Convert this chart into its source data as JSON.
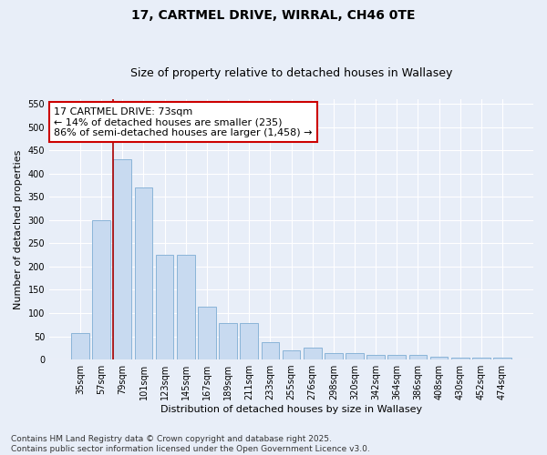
{
  "title": "17, CARTMEL DRIVE, WIRRAL, CH46 0TE",
  "subtitle": "Size of property relative to detached houses in Wallasey",
  "xlabel": "Distribution of detached houses by size in Wallasey",
  "ylabel": "Number of detached properties",
  "categories": [
    "35sqm",
    "57sqm",
    "79sqm",
    "101sqm",
    "123sqm",
    "145sqm",
    "167sqm",
    "189sqm",
    "211sqm",
    "233sqm",
    "255sqm",
    "276sqm",
    "298sqm",
    "320sqm",
    "342sqm",
    "364sqm",
    "386sqm",
    "408sqm",
    "430sqm",
    "452sqm",
    "474sqm"
  ],
  "values": [
    57,
    300,
    430,
    370,
    225,
    225,
    113,
    78,
    78,
    38,
    20,
    25,
    14,
    13,
    9,
    9,
    9,
    6,
    4,
    4,
    4
  ],
  "bar_color": "#c8daf0",
  "bar_edge_color": "#8ab4d8",
  "vline_color": "#aa0000",
  "vline_x_index": 2,
  "annotation_title": "17 CARTMEL DRIVE: 73sqm",
  "annotation_line1": "← 14% of detached houses are smaller (235)",
  "annotation_line2": "86% of semi-detached houses are larger (1,458) →",
  "annotation_box_facecolor": "#ffffff",
  "annotation_box_edgecolor": "#cc0000",
  "ylim": [
    0,
    560
  ],
  "yticks": [
    0,
    50,
    100,
    150,
    200,
    250,
    300,
    350,
    400,
    450,
    500,
    550
  ],
  "bg_color": "#e8eef8",
  "plot_bg_color": "#e8eef8",
  "grid_color": "#ffffff",
  "footer_line1": "Contains HM Land Registry data © Crown copyright and database right 2025.",
  "footer_line2": "Contains public sector information licensed under the Open Government Licence v3.0.",
  "title_fontsize": 10,
  "subtitle_fontsize": 9,
  "axis_label_fontsize": 8,
  "tick_fontsize": 7,
  "annotation_fontsize": 8,
  "footer_fontsize": 6.5
}
